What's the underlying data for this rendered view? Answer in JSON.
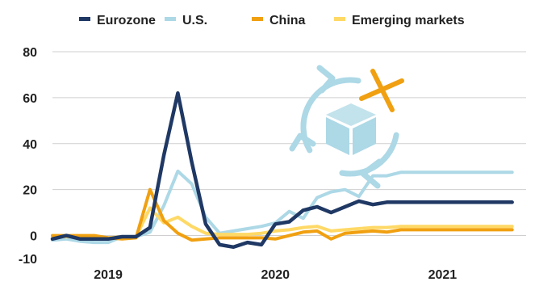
{
  "chart_data": {
    "type": "line",
    "title": "",
    "xlabel": "",
    "ylabel": "",
    "ylim": [
      -10,
      80
    ],
    "yticks": [
      80,
      60,
      40,
      20,
      0,
      -10
    ],
    "x_tick_labels": [
      {
        "label": "2019",
        "x": 3
      },
      {
        "label": "2020",
        "x": 15
      },
      {
        "label": "2021",
        "x": 27
      }
    ],
    "x_range": [
      -1,
      33
    ],
    "grid": "horizontal",
    "legend_position": "top",
    "x": [
      -1,
      0,
      1,
      2,
      3,
      4,
      5,
      6,
      7,
      8,
      9,
      10,
      11,
      12,
      13,
      14,
      15,
      16,
      17,
      18,
      19,
      20,
      21,
      22,
      23,
      24,
      25,
      26,
      27,
      28,
      29,
      30,
      31,
      32,
      33
    ],
    "series": [
      {
        "name": "Eurozone",
        "color": "#1f3864",
        "values": [
          -1.5,
          0,
          -1.5,
          -1.5,
          -1.5,
          -0.5,
          -0.5,
          3.5,
          35,
          62,
          32,
          5,
          -4,
          -5,
          -3,
          -4,
          5,
          6,
          11,
          12.5,
          10,
          12.5,
          15,
          13.5,
          14.5,
          14.5,
          14.5,
          14.5,
          14.5,
          14.5,
          14.5,
          14.5,
          14.5,
          14.5,
          14.5
        ]
      },
      {
        "name": "U.S.",
        "color": "#add8e6",
        "values": [
          -2,
          -1.5,
          -2.5,
          -3,
          -3,
          -0.5,
          -0.5,
          1.5,
          13,
          28,
          22.5,
          8,
          1,
          2,
          3,
          4,
          5.5,
          10.5,
          7.5,
          16.5,
          19,
          20,
          17,
          26,
          26,
          27.5,
          27.5,
          27.5,
          27.5,
          27.5,
          27.5,
          27.5,
          27.5,
          27.5,
          27.5
        ]
      },
      {
        "name": "China",
        "color": "#f0a010",
        "values": [
          0,
          0,
          0,
          0,
          -1,
          -1.5,
          -1,
          20,
          6.5,
          1,
          -2,
          -1.5,
          -1,
          -1,
          -1,
          -1,
          -1.5,
          0,
          1.5,
          2,
          -1.5,
          1,
          1.5,
          2,
          1.5,
          2.5,
          2.5,
          2.5,
          2.5,
          2.5,
          2.5,
          2.5,
          2.5,
          2.5,
          2.5
        ]
      },
      {
        "name": "Emerging markets",
        "color": "#ffd966",
        "values": [
          -0.5,
          -0.5,
          -0.5,
          -1,
          -1,
          -0.5,
          -0.5,
          12,
          5.5,
          8,
          4,
          1,
          0.5,
          0.5,
          0.5,
          1,
          2,
          2.5,
          3.5,
          4,
          2,
          2.5,
          3,
          3.5,
          3.5,
          4,
          4,
          4,
          4,
          4,
          4,
          4,
          4,
          4,
          4
        ]
      }
    ]
  },
  "decoration": {
    "arrows_color": "#add8e6",
    "box_color": "#add8e6",
    "cross_color": "#f0a010"
  }
}
